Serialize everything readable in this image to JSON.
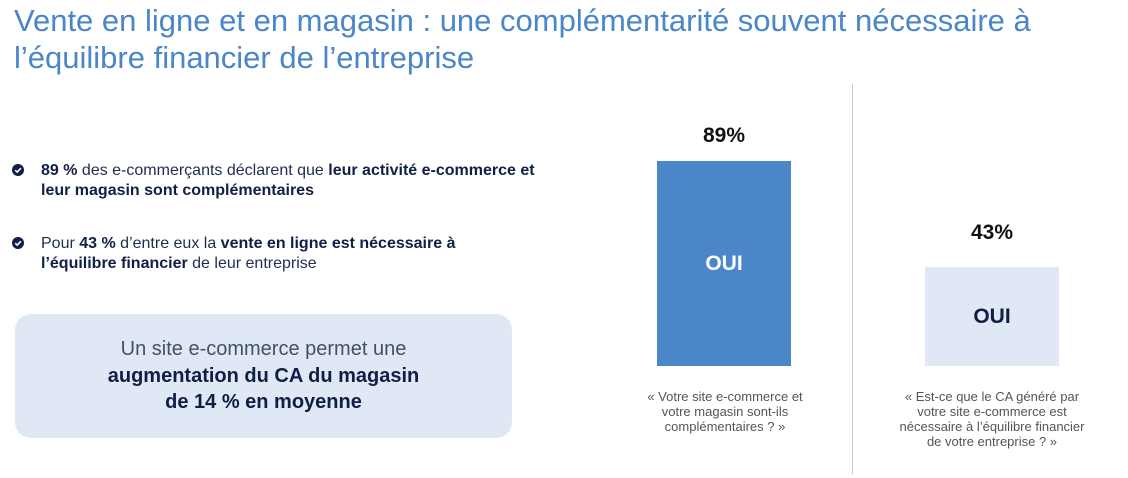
{
  "title": {
    "line1": "Vente en ligne et en magasin : une complémentarité souvent nécessaire à",
    "line2": "l’équilibre financier de l’entreprise"
  },
  "bullets": [
    {
      "icon": "check-circle-icon",
      "line1_parts": [
        "89 %",
        " des e-commerçants déclarent que ",
        "leur activité e-commerce et"
      ],
      "line2": "leur magasin sont complémentaires"
    },
    {
      "icon": "check-circle-icon",
      "line1_parts": [
        "Pour ",
        "43 %",
        " d’entre eux la ",
        "vente en ligne est nécessaire à"
      ],
      "line2_parts": [
        "l’équilibre financier",
        " de leur entreprise"
      ]
    }
  ],
  "callout": {
    "line1": "Un site e-commerce permet une",
    "line2": "augmentation du CA du magasin",
    "line3": "de 14 % en moyenne"
  },
  "colors": {
    "title": "#4a86c8",
    "bar_dark": "#4a86c8",
    "bar_light": "#dfe8f4",
    "callout_bg": "#dfe8f4",
    "check": "#0f1f45"
  },
  "chart_data": [
    {
      "type": "bar",
      "categories": [
        "OUI"
      ],
      "values": [
        89
      ],
      "value_label": "89%",
      "bar_label": "OUI",
      "caption": [
        "« Votre site e-commerce et",
        "votre magasin sont-ils",
        "complémentaires ? »"
      ],
      "ylim": [
        0,
        100
      ],
      "color": "#4a86c8"
    },
    {
      "type": "bar",
      "categories": [
        "OUI"
      ],
      "values": [
        43
      ],
      "value_label": "43%",
      "bar_label": "OUI",
      "caption": [
        "« Est-ce que le CA généré par",
        "votre site e-commerce est",
        "nécessaire à l’équilibre financier",
        "de votre entreprise ? »"
      ],
      "ylim": [
        0,
        100
      ],
      "color": "#dfe8f4"
    }
  ]
}
